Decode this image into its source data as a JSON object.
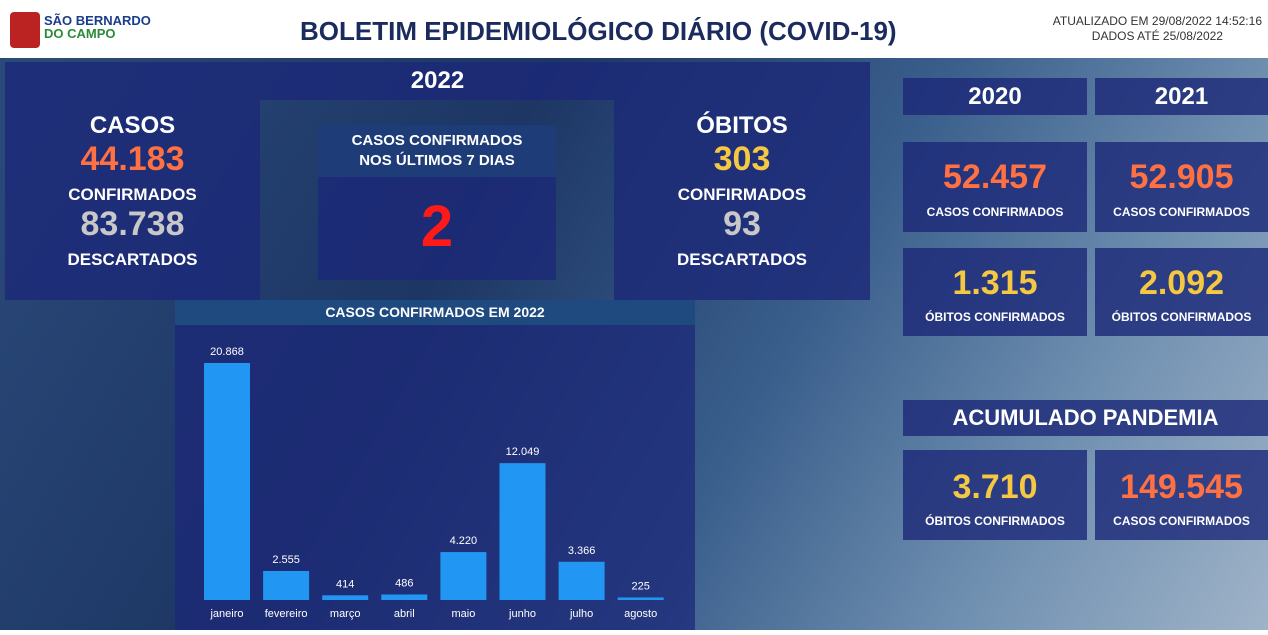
{
  "header": {
    "logo_line1": "SÃO BERNARDO",
    "logo_line2": "DO CAMPO",
    "title": "BOLETIM EPIDEMIOLÓGICO DIÁRIO (COVID-19)",
    "updated": "ATUALIZADO EM 29/08/2022 14:52:16",
    "data_until": "DADOS ATÉ 25/08/2022"
  },
  "year_2022": {
    "year": "2022",
    "cases": {
      "title": "CASOS",
      "confirmed": "44.183",
      "confirmed_label": "CONFIRMADOS",
      "discarded": "83.738",
      "discarded_label": "DESCARTADOS"
    },
    "last7": {
      "title_line1": "CASOS CONFIRMADOS",
      "title_line2": "NOS ÚLTIMOS 7 DIAS",
      "value": "2"
    },
    "deaths": {
      "title": "ÓBITOS",
      "confirmed": "303",
      "confirmed_label": "CONFIRMADOS",
      "discarded": "93",
      "discarded_label": "DESCARTADOS"
    }
  },
  "years": [
    {
      "year": "2020",
      "cases": "52.457",
      "cases_label": "CASOS CONFIRMADOS",
      "deaths": "1.315",
      "deaths_label": "ÓBITOS CONFIRMADOS"
    },
    {
      "year": "2021",
      "cases": "52.905",
      "cases_label": "CASOS CONFIRMADOS",
      "deaths": "2.092",
      "deaths_label": "ÓBITOS CONFIRMADOS"
    }
  ],
  "accumulated": {
    "title": "ACUMULADO PANDEMIA",
    "deaths": "3.710",
    "deaths_label": "ÓBITOS CONFIRMADOS",
    "cases": "149.545",
    "cases_label": "CASOS CONFIRMADOS"
  },
  "chart_data": {
    "type": "bar",
    "title": "CASOS CONFIRMADOS EM 2022",
    "categories": [
      "janeiro",
      "fevereiro",
      "março",
      "abril",
      "maio",
      "junho",
      "julho",
      "agosto"
    ],
    "values": [
      20868,
      2555,
      414,
      486,
      4220,
      12049,
      3366,
      225
    ],
    "value_labels": [
      "20.868",
      "2.555",
      "414",
      "486",
      "4.220",
      "12.049",
      "3.366",
      "225"
    ],
    "color": "#2196f3"
  }
}
